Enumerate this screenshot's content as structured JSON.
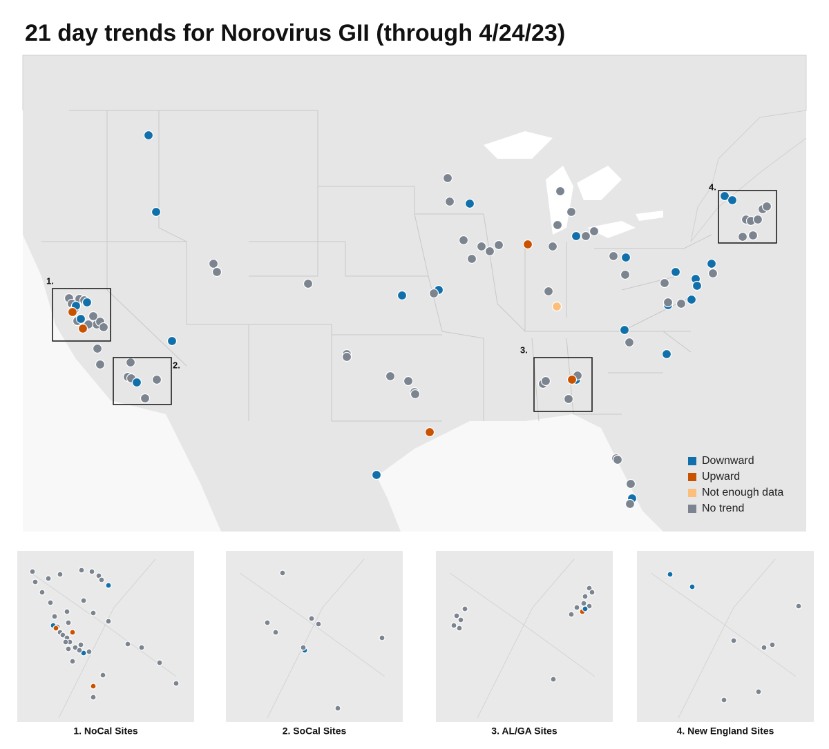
{
  "title": "21 day trends for Norovirus GII (through 4/24/23)",
  "legend": [
    {
      "label": "Downward",
      "color": "#1170aa"
    },
    {
      "label": "Upward",
      "color": "#c85200"
    },
    {
      "label": "Not enough data",
      "color": "#fbbf7b"
    },
    {
      "label": "No trend",
      "color": "#7b848f"
    }
  ],
  "boxes": [
    "1.",
    "2.",
    "3.",
    "4."
  ],
  "insets": [
    "1. NoCal Sites",
    "2. SoCal Sites",
    "3. AL/GA Sites",
    "4. New England Sites"
  ]
}
